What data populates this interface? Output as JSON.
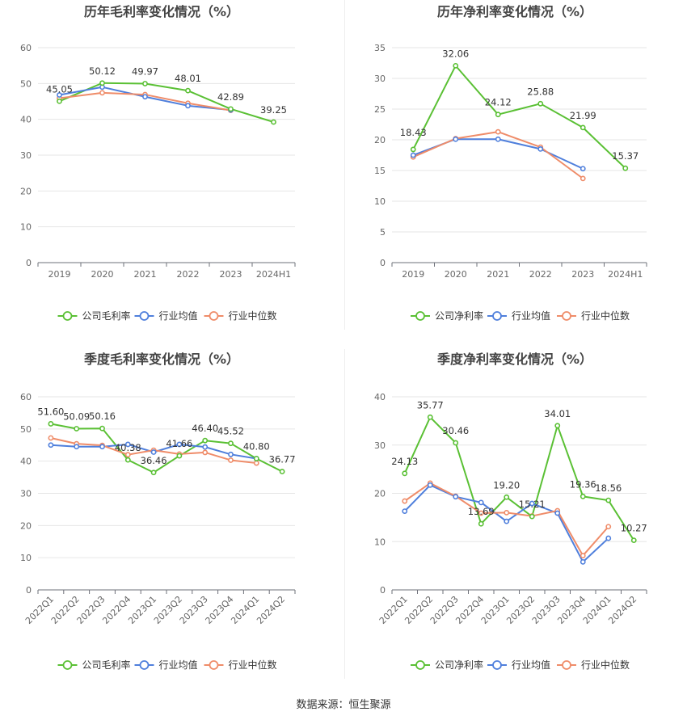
{
  "colors": {
    "company": "#5ac034",
    "avg": "#4f7fdc",
    "median": "#ef8c69"
  },
  "legend": {
    "gross_company": "公司毛利率",
    "net_company": "公司净利率",
    "avg": "行业均值",
    "median": "行业中位数"
  },
  "source": "数据来源：恒生聚源",
  "chart_data": [
    {
      "type": "line",
      "title": "历年毛利率变化情况（%）",
      "categories": [
        "2019",
        "2020",
        "2021",
        "2022",
        "2023",
        "2024H1"
      ],
      "ylim": [
        0,
        60
      ],
      "yticks": [
        0,
        10,
        20,
        30,
        40,
        50,
        60
      ],
      "legend_position": "bottom",
      "grid": true,
      "series": [
        {
          "name": "公司毛利率",
          "values": [
            45.05,
            50.12,
            49.97,
            48.01,
            42.89,
            39.25
          ],
          "labels": [
            "45.05",
            "50.12",
            "49.97",
            "48.01",
            "42.89",
            "39.25"
          ]
        },
        {
          "name": "行业均值",
          "values": [
            46.8,
            49.0,
            46.3,
            43.8,
            42.6,
            null
          ]
        },
        {
          "name": "行业中位数",
          "values": [
            45.9,
            47.4,
            46.9,
            44.5,
            42.5,
            null
          ]
        }
      ]
    },
    {
      "type": "line",
      "title": "历年净利率变化情况（%）",
      "categories": [
        "2019",
        "2020",
        "2021",
        "2022",
        "2023",
        "2024H1"
      ],
      "ylim": [
        0,
        35
      ],
      "yticks": [
        0,
        5,
        10,
        15,
        20,
        25,
        30,
        35
      ],
      "legend_position": "bottom",
      "grid": true,
      "series": [
        {
          "name": "公司净利率",
          "values": [
            18.43,
            32.06,
            24.12,
            25.88,
            21.99,
            15.37
          ],
          "labels": [
            "18.43",
            "32.06",
            "24.12",
            "25.88",
            "21.99",
            "15.37"
          ]
        },
        {
          "name": "行业均值",
          "values": [
            17.5,
            20.1,
            20.1,
            18.5,
            15.3,
            null
          ]
        },
        {
          "name": "行业中位数",
          "values": [
            17.2,
            20.2,
            21.3,
            18.8,
            13.7,
            null
          ]
        }
      ]
    },
    {
      "type": "line",
      "title": "季度毛利率变化情况（%）",
      "categories": [
        "2022Q1",
        "2022Q2",
        "2022Q3",
        "2022Q4",
        "2023Q1",
        "2023Q2",
        "2023Q3",
        "2023Q4",
        "2024Q1",
        "2024Q2"
      ],
      "ylim": [
        0,
        60
      ],
      "yticks": [
        0,
        10,
        20,
        30,
        40,
        50,
        60
      ],
      "legend_position": "bottom",
      "grid": true,
      "series": [
        {
          "name": "公司毛利率",
          "values": [
            51.6,
            50.09,
            50.16,
            40.38,
            36.46,
            41.66,
            46.4,
            45.52,
            40.8,
            36.77
          ],
          "labels": [
            "51.60",
            "50.09",
            "50.16",
            "40.38",
            "36.46",
            "41.66",
            "46.40",
            "45.52",
            "40.80",
            "36.77"
          ]
        },
        {
          "name": "行业均值",
          "values": [
            45.0,
            44.5,
            44.5,
            45.2,
            42.8,
            45.2,
            44.4,
            42.1,
            40.8,
            null
          ]
        },
        {
          "name": "行业中位数",
          "values": [
            47.2,
            45.4,
            44.9,
            42.0,
            43.4,
            42.2,
            42.7,
            40.3,
            39.4,
            null
          ]
        }
      ]
    },
    {
      "type": "line",
      "title": "季度净利率变化情况（%）",
      "categories": [
        "2022Q1",
        "2022Q2",
        "2022Q3",
        "2022Q4",
        "2023Q1",
        "2023Q2",
        "2023Q3",
        "2023Q4",
        "2024Q1",
        "2024Q2"
      ],
      "ylim": [
        0,
        40
      ],
      "yticks": [
        0,
        10,
        20,
        30,
        40
      ],
      "legend_position": "bottom",
      "grid": true,
      "series": [
        {
          "name": "公司净利率",
          "values": [
            24.13,
            35.77,
            30.46,
            13.69,
            19.2,
            15.21,
            34.01,
            19.36,
            18.56,
            10.27
          ],
          "labels": [
            "24.13",
            "35.77",
            "30.46",
            "13.69",
            "19.20",
            "15.21",
            "34.01",
            "19.36",
            "18.56",
            "10.27"
          ]
        },
        {
          "name": "行业均值",
          "values": [
            16.3,
            21.7,
            19.3,
            18.1,
            14.2,
            17.9,
            15.9,
            5.8,
            10.7,
            null
          ]
        },
        {
          "name": "行业中位数",
          "values": [
            18.4,
            22.1,
            19.4,
            15.9,
            16.0,
            15.3,
            16.4,
            7.1,
            13.1,
            null
          ]
        }
      ]
    }
  ]
}
